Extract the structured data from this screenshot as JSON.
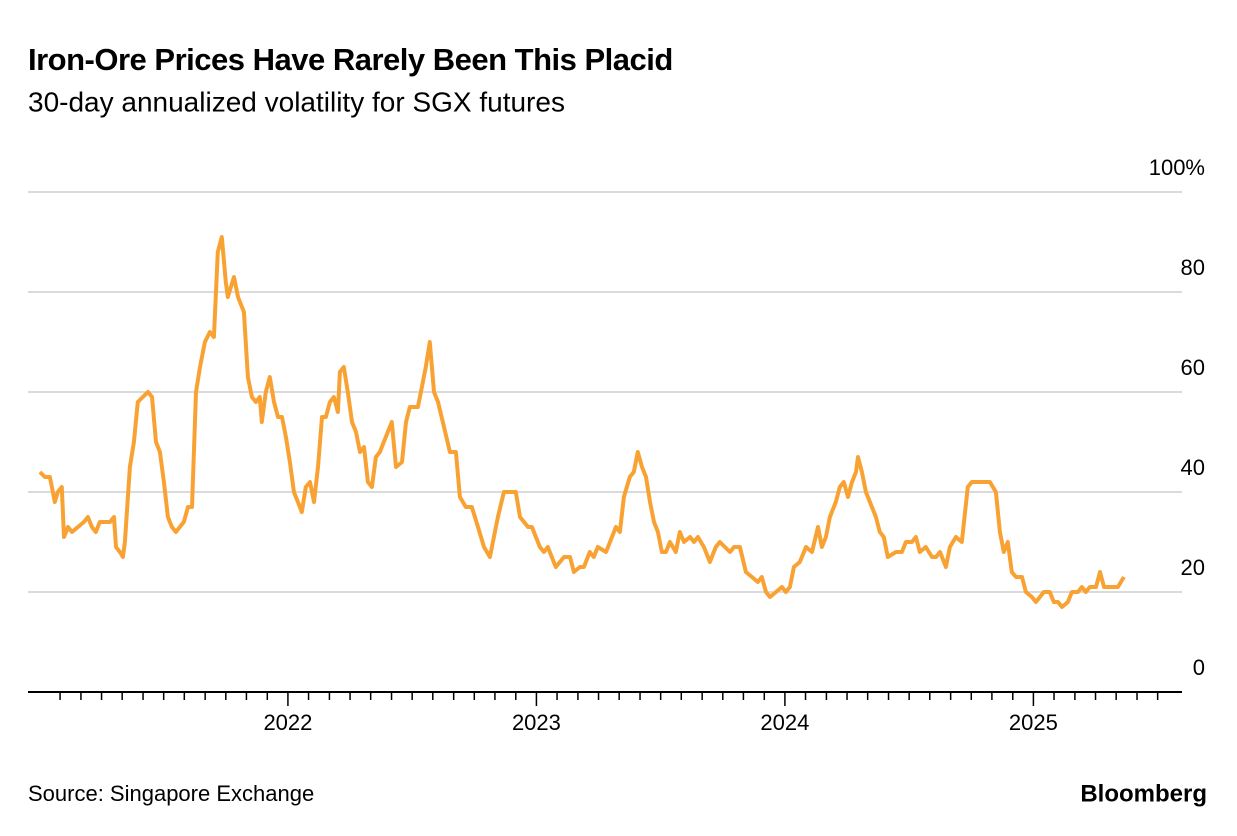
{
  "chart_data": {
    "type": "line",
    "title": "Iron-Ore Prices Have Rarely Been This Placid",
    "subtitle": "30-day annualized volatility for SGX futures",
    "source": "Source: Singapore Exchange",
    "brand": "Bloomberg",
    "xlim": [
      2020.954,
      2025.598
    ],
    "xticks": [
      2022,
      2023,
      2024,
      2025
    ],
    "xminorticks": [
      2021.083,
      2021.167,
      2021.25,
      2021.333,
      2021.417,
      2021.5,
      2021.583,
      2021.667,
      2021.75,
      2021.833,
      2021.917,
      2022.083,
      2022.167,
      2022.25,
      2022.333,
      2022.417,
      2022.5,
      2022.583,
      2022.667,
      2022.75,
      2022.833,
      2022.917,
      2023.083,
      2023.167,
      2023.25,
      2023.333,
      2023.417,
      2023.5,
      2023.583,
      2023.667,
      2023.75,
      2023.833,
      2023.917,
      2024.083,
      2024.167,
      2024.25,
      2024.333,
      2024.417,
      2024.5,
      2024.583,
      2024.667,
      2024.75,
      2024.833,
      2024.917,
      2025.083,
      2025.167,
      2025.25,
      2025.333,
      2025.417,
      2025.5
    ],
    "ylim": [
      0,
      100
    ],
    "yticks": [
      0,
      20,
      40,
      60,
      80,
      {
        "value": 100,
        "label": "100%"
      }
    ],
    "grid": true,
    "x": [
      2021.002,
      2021.022,
      2021.042,
      2021.062,
      2021.074,
      2021.09,
      2021.099,
      2021.115,
      2021.131,
      2021.155,
      2021.179,
      2021.195,
      2021.211,
      2021.227,
      2021.243,
      2021.284,
      2021.3,
      2021.308,
      2021.324,
      2021.336,
      2021.344,
      2021.364,
      2021.38,
      2021.396,
      2021.416,
      2021.437,
      2021.453,
      2021.469,
      2021.485,
      2021.501,
      2021.517,
      2021.533,
      2021.549,
      2021.565,
      2021.581,
      2021.598,
      2021.614,
      2021.63,
      2021.646,
      2021.666,
      2021.686,
      2021.702,
      2021.718,
      2021.734,
      2021.75,
      2021.758,
      2021.783,
      2021.799,
      2021.823,
      2021.839,
      2021.855,
      2021.871,
      2021.887,
      2021.895,
      2021.911,
      2021.927,
      2021.944,
      2021.96,
      2021.976,
      2021.992,
      2022.008,
      2022.024,
      2022.04,
      2022.056,
      2022.072,
      2022.089,
      2022.105,
      2022.121,
      2022.137,
      2022.153,
      2022.169,
      2022.185,
      2022.201,
      2022.209,
      2022.225,
      2022.241,
      2022.258,
      2022.274,
      2022.29,
      2022.306,
      2022.322,
      2022.338,
      2022.354,
      2022.37,
      2022.386,
      2022.402,
      2022.418,
      2022.435,
      2022.459,
      2022.475,
      2022.491,
      2022.523,
      2022.539,
      2022.555,
      2022.571,
      2022.588,
      2022.604,
      2022.628,
      2022.652,
      2022.676,
      2022.692,
      2022.716,
      2022.74,
      2022.765,
      2022.789,
      2022.813,
      2022.829,
      2022.845,
      2022.869,
      2022.917,
      2022.934,
      2022.95,
      2022.966,
      2022.982,
      2023.014,
      2023.03,
      2023.046,
      2023.078,
      2023.111,
      2023.135,
      2023.151,
      2023.175,
      2023.191,
      2023.215,
      2023.231,
      2023.247,
      2023.28,
      2023.296,
      2023.32,
      2023.336,
      2023.352,
      2023.376,
      2023.392,
      2023.408,
      2023.425,
      2023.441,
      2023.457,
      2023.473,
      2023.489,
      2023.505,
      2023.521,
      2023.537,
      2023.561,
      2023.577,
      2023.594,
      2023.618,
      2023.634,
      2023.65,
      2023.674,
      2023.698,
      2023.722,
      2023.738,
      2023.779,
      2023.795,
      2023.819,
      2023.843,
      2023.867,
      2023.891,
      2023.907,
      2023.924,
      2023.94,
      2023.964,
      2023.988,
      2024.004,
      2024.02,
      2024.036,
      2024.06,
      2024.085,
      2024.109,
      2024.133,
      2024.149,
      2024.165,
      2024.181,
      2024.205,
      2024.221,
      2024.237,
      2024.254,
      2024.27,
      2024.286,
      2024.294,
      2024.31,
      2024.326,
      2024.342,
      2024.366,
      2024.382,
      2024.398,
      2024.414,
      2024.447,
      2024.471,
      2024.487,
      2024.511,
      2024.527,
      2024.543,
      2024.567,
      2024.592,
      2024.608,
      2024.624,
      2024.648,
      2024.664,
      2024.688,
      2024.712,
      2024.736,
      2024.752,
      2024.777,
      2024.825,
      2024.849,
      2024.865,
      2024.881,
      2024.897,
      2024.913,
      2024.93,
      2024.954,
      2024.97,
      2024.994,
      2025.01,
      2025.026,
      2025.042,
      2025.066,
      2025.082,
      2025.099,
      2025.115,
      2025.139,
      2025.155,
      2025.179,
      2025.195,
      2025.211,
      2025.227,
      2025.252,
      2025.268,
      2025.284,
      2025.3,
      2025.34,
      2025.364
    ],
    "series": [
      {
        "name": "Volatility",
        "color": "#f9a234",
        "values": [
          44,
          43,
          43,
          38,
          40,
          41,
          31,
          33,
          32,
          33,
          34,
          35,
          33,
          32,
          34,
          34,
          35,
          29,
          28,
          27,
          30,
          45,
          50,
          58,
          59,
          60,
          59,
          50,
          48,
          42,
          35,
          33,
          32,
          33,
          34,
          37,
          37,
          60,
          65,
          70,
          72,
          71,
          88,
          91,
          82,
          79,
          83,
          79,
          76,
          63,
          59,
          58,
          59,
          54,
          60,
          63,
          58,
          55,
          55,
          51,
          46,
          40,
          38,
          36,
          41,
          42,
          38,
          45,
          55,
          55,
          58,
          59,
          56,
          64,
          65,
          60,
          54,
          52,
          48,
          49,
          42,
          41,
          47,
          48,
          50,
          52,
          54,
          45,
          46,
          54,
          57,
          57,
          61,
          65,
          70,
          60,
          58,
          53,
          48,
          48,
          39,
          37,
          37,
          33,
          29,
          27,
          31,
          35,
          40,
          40,
          35,
          34,
          33,
          33,
          29,
          28,
          29,
          25,
          27,
          27,
          24,
          25,
          25,
          28,
          27,
          29,
          28,
          30,
          33,
          32,
          39,
          43,
          44,
          48,
          45,
          43,
          38,
          34,
          32,
          28,
          28,
          30,
          28,
          32,
          30,
          31,
          30,
          31,
          29,
          26,
          29,
          30,
          28,
          29,
          29,
          24,
          23,
          22,
          23,
          20,
          19,
          20,
          21,
          20,
          21,
          25,
          26,
          29,
          28,
          33,
          29,
          31,
          35,
          38,
          41,
          42,
          39,
          42,
          44,
          47,
          44,
          40,
          38,
          35,
          32,
          31,
          27,
          28,
          28,
          30,
          30,
          31,
          28,
          29,
          27,
          27,
          28,
          25,
          29,
          31,
          30,
          41,
          42,
          42,
          42,
          40,
          32,
          28,
          30,
          24,
          23,
          23,
          20,
          19,
          18,
          19,
          20,
          20,
          18,
          18,
          17,
          18,
          20,
          20,
          21,
          20,
          21,
          21,
          24,
          21,
          21,
          21,
          23
        ]
      }
    ]
  }
}
